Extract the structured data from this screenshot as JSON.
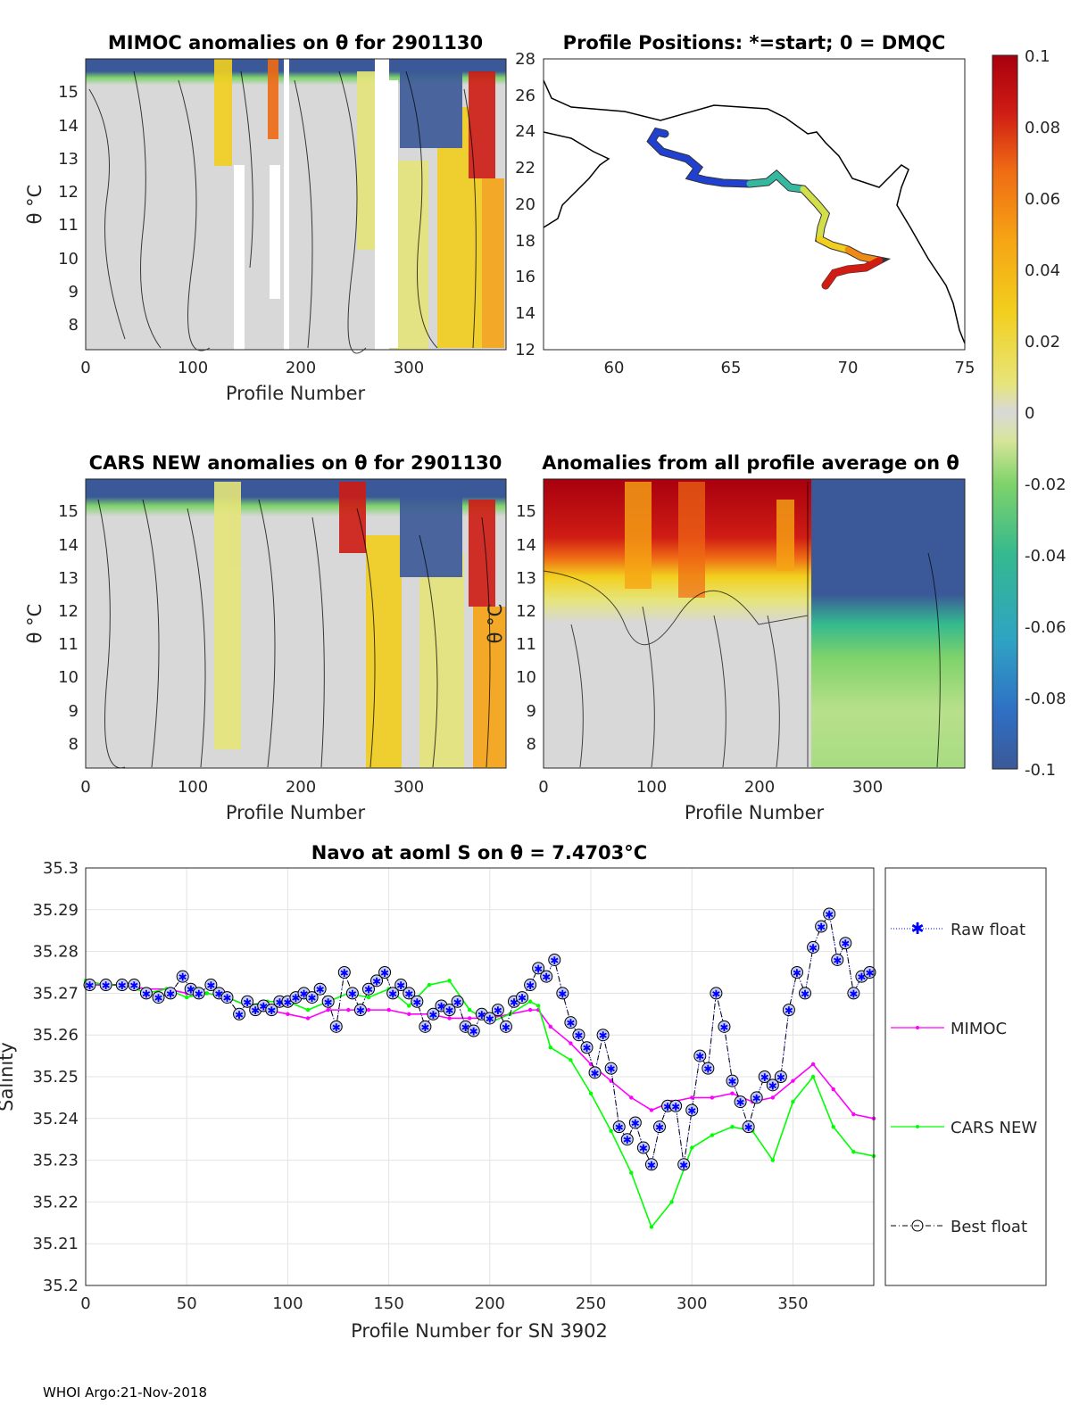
{
  "footer": "WHOI Argo:21-Nov-2018",
  "colors": {
    "raw": "#0000ff",
    "mimoc": "#ff00ff",
    "cars": "#00ff00",
    "best": "#000000",
    "colormap": [
      "#3b5998",
      "#2f6fc4",
      "#2fa3c4",
      "#34b98f",
      "#7fd36a",
      "#d7e59a",
      "#d8d8d8",
      "#e6e57a",
      "#f2cf1e",
      "#f6a514",
      "#ef6a14",
      "#cf1c14",
      "#a8000e"
    ]
  },
  "panels": {
    "mimoc": {
      "title": "MIMOC anomalies on θ  for 2901130",
      "xlabel": "Profile Number",
      "ylabel": "θ °C",
      "xticks": [
        "0",
        "100",
        "200",
        "300"
      ],
      "yticks": [
        "8",
        "9",
        "10",
        "11",
        "12",
        "13",
        "14",
        "15"
      ]
    },
    "cars": {
      "title": "CARS NEW anomalies on θ for 2901130",
      "xlabel": "Profile Number",
      "ylabel": "θ °C",
      "xticks": [
        "0",
        "100",
        "200",
        "300"
      ],
      "yticks": [
        "8",
        "9",
        "10",
        "11",
        "12",
        "13",
        "14",
        "15"
      ]
    },
    "allavg": {
      "title": "Anomalies from all profile average on θ",
      "xlabel": "Profile Number",
      "ylabel": "θ °C",
      "xticks": [
        "0",
        "100",
        "200",
        "300"
      ],
      "yticks": [
        "8",
        "9",
        "10",
        "11",
        "12",
        "13",
        "14",
        "15"
      ]
    },
    "map": {
      "title": "Profile Positions: *=start; 0 = DMQC",
      "xticks": [
        "60",
        "65",
        "70",
        "75"
      ],
      "yticks": [
        "12",
        "14",
        "16",
        "18",
        "20",
        "22",
        "24",
        "26",
        "28"
      ]
    }
  },
  "colorbar": {
    "ticks": [
      "0.1",
      "0.08",
      "0.06",
      "0.04",
      "0.02",
      "0",
      "-0.02",
      "-0.04",
      "-0.06",
      "-0.08",
      "-0.1"
    ]
  },
  "chart_data": {
    "type": "line",
    "title": "Navo at aoml S on θ = 7.4703°C",
    "xlabel": "Profile Number for SN 3902",
    "ylabel": "Salinity",
    "xlim": [
      0,
      390
    ],
    "ylim": [
      35.2,
      35.3
    ],
    "xticks": [
      "0",
      "50",
      "100",
      "150",
      "200",
      "250",
      "300",
      "350"
    ],
    "yticks": [
      "35.3",
      "35.29",
      "35.28",
      "35.27",
      "35.26",
      "35.25",
      "35.24",
      "35.23",
      "35.22",
      "35.21",
      "35.2"
    ],
    "legend_position": "right",
    "series": [
      {
        "name": "Raw float",
        "style": "dotted-star",
        "x": [
          2,
          10,
          18,
          24,
          30,
          36,
          42,
          48,
          52,
          56,
          62,
          66,
          70,
          76,
          80,
          84,
          88,
          92,
          96,
          100,
          104,
          108,
          112,
          116,
          120,
          124,
          128,
          132,
          136,
          140,
          144,
          148,
          152,
          156,
          160,
          164,
          168,
          172,
          176,
          180,
          184,
          188,
          192,
          196,
          200,
          204,
          208,
          212,
          216,
          220,
          224,
          228,
          232,
          236,
          240,
          244,
          248,
          252,
          256,
          260,
          264,
          268,
          272,
          276,
          280,
          284,
          288,
          292,
          296,
          300,
          304,
          308,
          312,
          316,
          320,
          324,
          328,
          332,
          336,
          340,
          344,
          348,
          352,
          356,
          360,
          364,
          368,
          372,
          376,
          380,
          384,
          388
        ],
        "y": [
          35.272,
          35.272,
          35.272,
          35.272,
          35.27,
          35.269,
          35.27,
          35.274,
          35.271,
          35.27,
          35.272,
          35.27,
          35.269,
          35.265,
          35.268,
          35.266,
          35.267,
          35.266,
          35.268,
          35.268,
          35.269,
          35.27,
          35.269,
          35.271,
          35.268,
          35.262,
          35.275,
          35.27,
          35.266,
          35.271,
          35.273,
          35.275,
          35.27,
          35.272,
          35.27,
          35.268,
          35.262,
          35.265,
          35.267,
          35.266,
          35.268,
          35.262,
          35.261,
          35.265,
          35.264,
          35.266,
          35.262,
          35.268,
          35.269,
          35.272,
          35.276,
          35.274,
          35.278,
          35.27,
          35.263,
          35.26,
          35.257,
          35.251,
          35.26,
          35.252,
          35.238,
          35.235,
          35.239,
          35.233,
          35.229,
          35.238,
          35.243,
          35.243,
          35.229,
          35.242,
          35.255,
          35.252,
          35.27,
          35.262,
          35.249,
          35.244,
          35.238,
          35.245,
          35.25,
          35.248,
          35.25,
          35.266,
          35.275,
          35.27,
          35.281,
          35.286,
          35.289,
          35.278,
          35.282,
          35.27,
          35.274,
          35.275
        ]
      },
      {
        "name": "MIMOC",
        "style": "line-dots",
        "x": [
          0,
          10,
          20,
          30,
          40,
          50,
          60,
          70,
          80,
          90,
          100,
          110,
          120,
          130,
          140,
          150,
          160,
          170,
          180,
          190,
          200,
          210,
          220,
          224,
          230,
          240,
          250,
          260,
          270,
          280,
          290,
          300,
          310,
          320,
          330,
          340,
          350,
          360,
          370,
          380,
          390
        ],
        "y": [
          35.272,
          35.272,
          35.272,
          35.271,
          35.271,
          35.27,
          35.27,
          35.269,
          35.267,
          35.266,
          35.265,
          35.264,
          35.266,
          35.266,
          35.266,
          35.266,
          35.265,
          35.265,
          35.264,
          35.264,
          35.264,
          35.265,
          35.266,
          35.266,
          35.262,
          35.258,
          35.253,
          35.249,
          35.245,
          35.242,
          35.244,
          35.245,
          35.245,
          35.246,
          35.244,
          35.245,
          35.249,
          35.253,
          35.247,
          35.241,
          35.24
        ]
      },
      {
        "name": "CARS NEW",
        "style": "line-dots",
        "x": [
          0,
          10,
          20,
          30,
          40,
          50,
          60,
          70,
          80,
          90,
          100,
          110,
          120,
          130,
          140,
          150,
          160,
          170,
          180,
          190,
          200,
          210,
          220,
          224,
          230,
          240,
          250,
          260,
          270,
          280,
          290,
          300,
          310,
          320,
          330,
          340,
          350,
          360,
          370,
          380,
          390
        ],
        "y": [
          35.273,
          35.272,
          35.272,
          35.27,
          35.271,
          35.269,
          35.27,
          35.269,
          35.267,
          35.268,
          35.268,
          35.266,
          35.268,
          35.27,
          35.269,
          35.271,
          35.267,
          35.272,
          35.273,
          35.266,
          35.263,
          35.265,
          35.268,
          35.267,
          35.257,
          35.254,
          35.246,
          35.237,
          35.227,
          35.214,
          35.22,
          35.233,
          35.236,
          35.238,
          35.237,
          35.23,
          35.244,
          35.25,
          35.238,
          35.232,
          35.231
        ]
      },
      {
        "name": "Best float",
        "style": "dashdot-circle"
      }
    ]
  }
}
